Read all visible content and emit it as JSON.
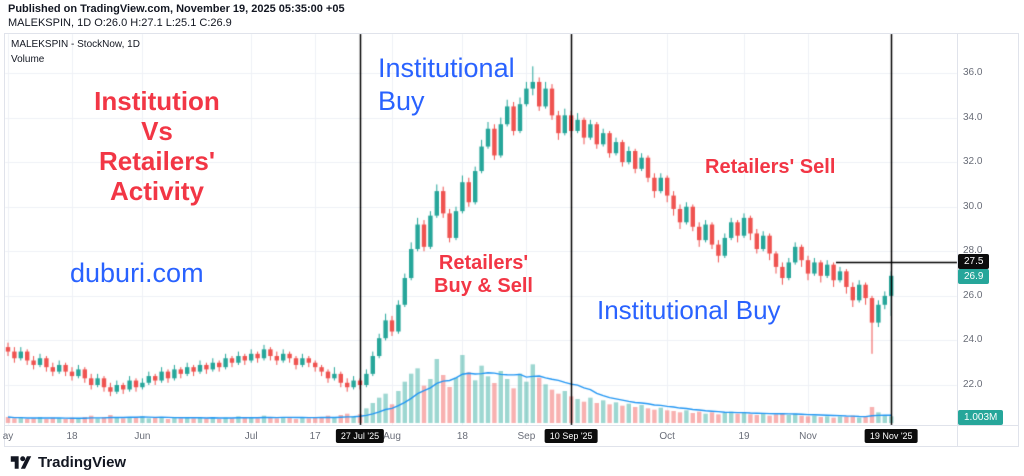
{
  "header": {
    "published_line": "Published on TradingView.com, November 19, 2025 05:35:00 +05",
    "symbol_line": "MALEKSPIN, 1D  O:26.0  H:27.1  L:25.1  C:26.9"
  },
  "legend": {
    "title": "MALEKSPIN - StockNow, 1D",
    "indicator": "Volume"
  },
  "annotations": {
    "institution_vs": "Institution\nVs\nRetailers'\nActivity",
    "institutional_buy_top": "Institutional\nBuy",
    "duburi": "duburi.com",
    "retailers_buy_sell": "Retailers'\nBuy & Sell",
    "retailers_sell": "Retailers' Sell",
    "institutional_buy_bottom": "Institutional Buy"
  },
  "axis": {
    "y_ticks": [
      {
        "label": "36.0",
        "value": 36
      },
      {
        "label": "34.0",
        "value": 34
      },
      {
        "label": "32.0",
        "value": 32
      },
      {
        "label": "30.0",
        "value": 30
      },
      {
        "label": "28.0",
        "value": 28
      },
      {
        "label": "26.0",
        "value": 26
      },
      {
        "label": "24.0",
        "value": 24
      },
      {
        "label": "22.0",
        "value": 22
      }
    ],
    "x_ticks": [
      {
        "label": "ay",
        "index": 0
      },
      {
        "label": "18",
        "index": 10
      },
      {
        "label": "Jun",
        "index": 21
      },
      {
        "label": "Jul",
        "index": 38
      },
      {
        "label": "17",
        "index": 48
      },
      {
        "label": "Aug",
        "index": 60
      },
      {
        "label": "18",
        "index": 71
      },
      {
        "label": "Sep",
        "index": 81
      },
      {
        "label": "Oct",
        "index": 103
      },
      {
        "label": "19",
        "index": 115
      },
      {
        "label": "Nov",
        "index": 125
      }
    ],
    "event_lines": [
      {
        "label": "27 Jul '25",
        "index": 55
      },
      {
        "label": "10 Sep '25",
        "index": 88
      },
      {
        "label": "19 Nov '25",
        "index": 138
      }
    ],
    "price_line": {
      "label": "27.5",
      "value": 27.5
    },
    "last_price": {
      "label": "26.9",
      "value": 26.9
    },
    "volume_badge": "1.003M"
  },
  "footer": {
    "brand": "TradingView"
  },
  "colors": {
    "up": "#26a69a",
    "down": "#ef5350",
    "volume_up": "rgba(38,166,154,0.45)",
    "volume_down": "rgba(239,83,80,0.45)",
    "volume_ma": "#2196f3",
    "grid": "#eef1f6",
    "axis_text": "#696d78",
    "annotation_red": "#f23645",
    "annotation_blue": "#2962ff",
    "badge_black": "#0c0c0c",
    "badge_teal": "#26a69a"
  },
  "chart_data": {
    "type": "candlestick",
    "title": "MALEKSPIN - StockNow, 1D",
    "symbol": "MALEKSPIN",
    "interval": "1D",
    "ylabel": "Price",
    "ylim": [
      21,
      37.5
    ],
    "volume_units": "millions",
    "volume_ma_window": 10,
    "last_ohlc": {
      "o": 26.0,
      "h": 27.1,
      "l": 25.1,
      "c": 26.9,
      "volume_label": "1.003M"
    },
    "columns": [
      "open",
      "high",
      "low",
      "close",
      "volume_M"
    ],
    "candles": [
      [
        23.7,
        23.9,
        23.3,
        23.5,
        0.9
      ],
      [
        23.5,
        23.7,
        23.0,
        23.2,
        0.7
      ],
      [
        23.2,
        23.7,
        23.1,
        23.5,
        0.8
      ],
      [
        23.5,
        23.6,
        22.9,
        23.1,
        0.6
      ],
      [
        23.1,
        23.3,
        22.7,
        22.9,
        0.7
      ],
      [
        22.9,
        23.4,
        22.8,
        23.2,
        0.9
      ],
      [
        23.2,
        23.3,
        22.6,
        22.8,
        0.6
      ],
      [
        22.8,
        23.0,
        22.4,
        22.6,
        0.8
      ],
      [
        22.6,
        23.1,
        22.5,
        22.9,
        0.7
      ],
      [
        22.9,
        23.0,
        22.4,
        22.6,
        0.6
      ],
      [
        22.6,
        22.8,
        22.2,
        22.4,
        0.8
      ],
      [
        22.4,
        22.9,
        22.3,
        22.7,
        0.6
      ],
      [
        22.7,
        22.8,
        22.1,
        22.3,
        0.9
      ],
      [
        22.3,
        22.5,
        21.8,
        22.0,
        1.1
      ],
      [
        22.0,
        22.5,
        21.9,
        22.3,
        0.7
      ],
      [
        22.3,
        22.4,
        21.7,
        21.9,
        0.9
      ],
      [
        21.9,
        22.1,
        21.5,
        21.7,
        1.2
      ],
      [
        21.7,
        22.2,
        21.6,
        22.0,
        0.8
      ],
      [
        22.0,
        22.1,
        21.6,
        21.8,
        0.7
      ],
      [
        21.8,
        22.4,
        21.7,
        22.2,
        0.9
      ],
      [
        22.2,
        22.3,
        21.7,
        21.9,
        0.8
      ],
      [
        21.9,
        22.3,
        21.8,
        22.1,
        1.0
      ],
      [
        22.1,
        22.6,
        22.0,
        22.4,
        0.7
      ],
      [
        22.4,
        22.5,
        22.0,
        22.2,
        0.8
      ],
      [
        22.2,
        22.8,
        22.1,
        22.6,
        0.9
      ],
      [
        22.6,
        22.7,
        22.1,
        22.3,
        0.6
      ],
      [
        22.3,
        22.9,
        22.2,
        22.7,
        0.8
      ],
      [
        22.7,
        22.8,
        22.3,
        22.5,
        0.7
      ],
      [
        22.5,
        23.0,
        22.4,
        22.8,
        0.9
      ],
      [
        22.8,
        22.9,
        22.4,
        22.6,
        0.7
      ],
      [
        22.6,
        23.1,
        22.5,
        22.9,
        0.8
      ],
      [
        22.9,
        23.0,
        22.5,
        22.7,
        0.7
      ],
      [
        22.7,
        23.2,
        22.6,
        23.0,
        0.9
      ],
      [
        23.0,
        23.1,
        22.6,
        22.8,
        0.6
      ],
      [
        22.8,
        23.4,
        22.7,
        23.2,
        0.8
      ],
      [
        23.2,
        23.3,
        22.8,
        23.0,
        0.7
      ],
      [
        23.0,
        23.5,
        22.9,
        23.3,
        1.0
      ],
      [
        23.3,
        23.4,
        22.9,
        23.1,
        0.8
      ],
      [
        23.1,
        23.6,
        23.0,
        23.4,
        0.9
      ],
      [
        23.4,
        23.5,
        23.0,
        23.2,
        0.7
      ],
      [
        23.2,
        23.8,
        23.1,
        23.6,
        1.1
      ],
      [
        23.6,
        23.7,
        23.1,
        23.3,
        0.8
      ],
      [
        23.3,
        23.5,
        22.9,
        23.1,
        0.7
      ],
      [
        23.1,
        23.6,
        23.0,
        23.4,
        0.9
      ],
      [
        23.4,
        23.5,
        23.0,
        23.2,
        0.8
      ],
      [
        23.2,
        23.3,
        22.7,
        22.9,
        0.6
      ],
      [
        22.9,
        23.4,
        22.8,
        23.2,
        0.9
      ],
      [
        23.2,
        23.3,
        22.8,
        23.0,
        0.7
      ],
      [
        23.0,
        23.1,
        22.6,
        22.8,
        0.8
      ],
      [
        22.8,
        22.9,
        22.4,
        22.6,
        0.9
      ],
      [
        22.6,
        22.7,
        22.1,
        22.3,
        1.1
      ],
      [
        22.3,
        22.8,
        22.2,
        22.5,
        0.8
      ],
      [
        22.5,
        22.6,
        21.9,
        22.1,
        1.2
      ],
      [
        22.1,
        22.3,
        21.7,
        21.9,
        1.4
      ],
      [
        21.9,
        22.4,
        21.8,
        22.2,
        1.0
      ],
      [
        22.2,
        22.3,
        21.8,
        22.0,
        1.3
      ],
      [
        22.0,
        22.7,
        21.9,
        22.5,
        2.2
      ],
      [
        22.5,
        23.5,
        22.4,
        23.3,
        3.0
      ],
      [
        23.3,
        24.3,
        23.2,
        24.1,
        3.8
      ],
      [
        24.1,
        25.2,
        24.0,
        24.9,
        4.4
      ],
      [
        24.9,
        25.1,
        24.2,
        24.4,
        2.8
      ],
      [
        24.4,
        25.8,
        24.3,
        25.6,
        4.8
      ],
      [
        25.6,
        27.0,
        25.5,
        26.8,
        6.2
      ],
      [
        26.8,
        28.4,
        26.7,
        28.1,
        7.4
      ],
      [
        28.1,
        29.5,
        28.0,
        29.2,
        8.2
      ],
      [
        29.2,
        29.4,
        28.0,
        28.2,
        5.6
      ],
      [
        28.2,
        29.8,
        28.1,
        29.6,
        6.6
      ],
      [
        29.6,
        31.0,
        29.5,
        30.7,
        9.6
      ],
      [
        30.7,
        30.9,
        29.5,
        29.7,
        7.2
      ],
      [
        29.7,
        29.9,
        28.4,
        28.6,
        5.4
      ],
      [
        28.6,
        30.0,
        28.5,
        29.8,
        6.8
      ],
      [
        29.8,
        31.4,
        29.7,
        31.1,
        10.2
      ],
      [
        31.1,
        31.3,
        30.0,
        30.2,
        7.6
      ],
      [
        30.2,
        31.8,
        30.1,
        31.6,
        6.4
      ],
      [
        31.6,
        33.0,
        31.5,
        32.7,
        8.6
      ],
      [
        32.7,
        33.8,
        32.6,
        33.5,
        7.0
      ],
      [
        33.5,
        33.7,
        32.1,
        32.3,
        6.0
      ],
      [
        32.3,
        34.0,
        32.2,
        33.7,
        7.8
      ],
      [
        33.7,
        34.8,
        33.6,
        34.5,
        6.6
      ],
      [
        34.5,
        34.7,
        33.2,
        33.4,
        5.2
      ],
      [
        33.4,
        34.9,
        33.3,
        34.6,
        7.4
      ],
      [
        34.6,
        35.6,
        34.5,
        35.3,
        6.2
      ],
      [
        35.3,
        36.3,
        35.0,
        35.6,
        8.8
      ],
      [
        35.6,
        35.8,
        34.3,
        34.5,
        6.8
      ],
      [
        34.5,
        35.6,
        34.4,
        35.3,
        5.8
      ],
      [
        35.3,
        35.5,
        33.9,
        34.1,
        5.0
      ],
      [
        34.1,
        34.3,
        33.0,
        33.3,
        4.4
      ],
      [
        33.3,
        34.4,
        33.2,
        34.1,
        4.8
      ],
      [
        34.1,
        34.3,
        33.1,
        33.4,
        4.0
      ],
      [
        33.4,
        34.2,
        33.3,
        33.9,
        3.6
      ],
      [
        33.9,
        34.0,
        32.8,
        33.1,
        3.2
      ],
      [
        33.1,
        33.9,
        33.0,
        33.7,
        3.8
      ],
      [
        33.7,
        33.8,
        32.6,
        32.8,
        3.0
      ],
      [
        32.8,
        33.5,
        32.7,
        33.3,
        3.4
      ],
      [
        33.3,
        33.4,
        32.2,
        32.4,
        2.8
      ],
      [
        32.4,
        33.1,
        32.3,
        32.9,
        3.1
      ],
      [
        32.9,
        33.0,
        31.8,
        32.0,
        2.6
      ],
      [
        32.0,
        32.7,
        31.9,
        32.5,
        2.9
      ],
      [
        32.5,
        32.6,
        31.5,
        31.7,
        2.4
      ],
      [
        31.7,
        32.4,
        31.6,
        32.2,
        2.7
      ],
      [
        32.2,
        32.3,
        31.1,
        31.3,
        2.2
      ],
      [
        31.3,
        31.5,
        30.4,
        30.7,
        2.0
      ],
      [
        30.7,
        31.5,
        30.6,
        31.3,
        2.3
      ],
      [
        31.3,
        31.4,
        30.2,
        30.5,
        1.9
      ],
      [
        30.5,
        30.7,
        29.6,
        29.9,
        1.8
      ],
      [
        29.9,
        30.1,
        29.0,
        29.3,
        1.6
      ],
      [
        29.3,
        30.2,
        29.2,
        30.0,
        1.9
      ],
      [
        30.0,
        30.1,
        28.9,
        29.1,
        1.5
      ],
      [
        29.1,
        29.3,
        28.2,
        28.5,
        1.7
      ],
      [
        28.5,
        29.4,
        28.4,
        29.2,
        1.4
      ],
      [
        29.2,
        29.3,
        28.1,
        28.3,
        1.6
      ],
      [
        28.3,
        28.5,
        27.5,
        27.8,
        1.3
      ],
      [
        27.8,
        28.8,
        27.7,
        28.6,
        1.5
      ],
      [
        28.6,
        29.5,
        28.5,
        29.3,
        1.7
      ],
      [
        29.3,
        29.4,
        28.4,
        28.7,
        1.4
      ],
      [
        28.7,
        29.7,
        28.6,
        29.5,
        1.6
      ],
      [
        29.5,
        29.6,
        28.5,
        28.8,
        1.3
      ],
      [
        28.8,
        29.0,
        27.9,
        28.1,
        1.2
      ],
      [
        28.1,
        28.9,
        28.0,
        28.7,
        1.4
      ],
      [
        28.7,
        28.8,
        27.6,
        27.9,
        1.1
      ],
      [
        27.9,
        28.0,
        27.0,
        27.3,
        1.3
      ],
      [
        27.3,
        27.5,
        26.5,
        26.8,
        1.5
      ],
      [
        26.8,
        27.7,
        26.7,
        27.5,
        1.2
      ],
      [
        27.5,
        28.4,
        27.4,
        28.2,
        1.4
      ],
      [
        28.2,
        28.3,
        27.3,
        27.6,
        1.1
      ],
      [
        27.6,
        27.8,
        26.7,
        27.0,
        1.0
      ],
      [
        27.0,
        27.7,
        26.9,
        27.5,
        1.1
      ],
      [
        27.5,
        27.6,
        26.6,
        26.9,
        0.9
      ],
      [
        26.9,
        27.6,
        26.8,
        27.4,
        1.0
      ],
      [
        27.4,
        27.5,
        26.4,
        26.7,
        0.8
      ],
      [
        26.7,
        27.3,
        26.6,
        27.1,
        1.0
      ],
      [
        27.1,
        27.2,
        26.1,
        26.4,
        0.9
      ],
      [
        26.4,
        26.6,
        25.5,
        25.8,
        1.1
      ],
      [
        25.8,
        26.7,
        25.7,
        26.5,
        0.8
      ],
      [
        26.5,
        26.6,
        25.6,
        25.9,
        0.9
      ],
      [
        25.9,
        26.0,
        23.4,
        24.8,
        2.4
      ],
      [
        24.8,
        25.8,
        24.6,
        25.6,
        1.6
      ],
      [
        25.6,
        26.2,
        25.4,
        26.0,
        1.2
      ],
      [
        26.0,
        27.1,
        25.1,
        26.9,
        1.003
      ]
    ]
  }
}
